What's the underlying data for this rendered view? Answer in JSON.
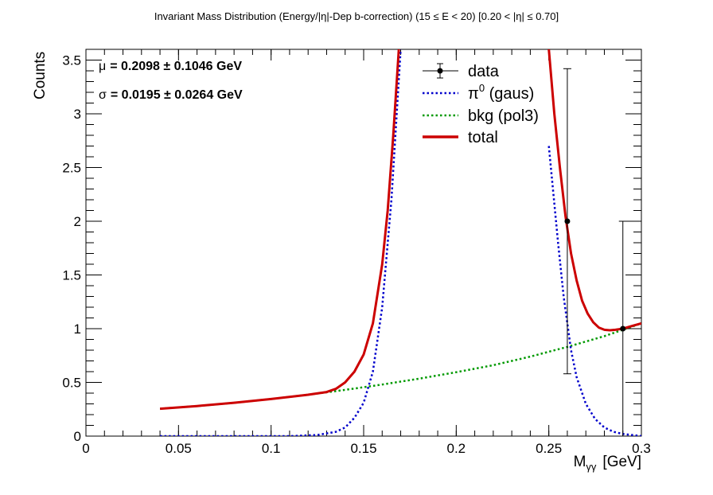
{
  "chart_data": {
    "type": "line",
    "title": "Invariant Mass Distribution (Energy/|η|-Dep b-correction)   (15 ≤ E < 20)   [0.20 < |η| ≤ 0.70]",
    "xlabel": "M",
    "xlabel_sub": "γγ",
    "xlabel_unit": "[GeV]",
    "ylabel": "Counts",
    "xlim": [
      0,
      0.3
    ],
    "ylim": [
      0,
      3.6
    ],
    "x_ticks": [
      0,
      0.05,
      0.1,
      0.15,
      0.2,
      0.25,
      0.3
    ],
    "x_tick_labels": [
      "0",
      "0.05",
      "0.1",
      "0.15",
      "0.2",
      "0.25",
      "0.3"
    ],
    "y_ticks": [
      0,
      0.5,
      1,
      1.5,
      2,
      2.5,
      3,
      3.5
    ],
    "y_tick_labels": [
      "0",
      "0.5",
      "1",
      "1.5",
      "2",
      "2.5",
      "3",
      "3.5"
    ],
    "grid": false,
    "legend_position": "top-right",
    "annotations": {
      "mu_symbol": "μ",
      "mu_text": "= 0.2098  ± 0.1046 GeV",
      "sigma_symbol": "σ",
      "sigma_text": "= 0.0195  ± 0.0264 GeV"
    },
    "legend": {
      "data": "data",
      "pi0_base": "π",
      "pi0_sup": "0",
      "pi0_rest": " (gaus)",
      "bkg": "bkg (pol3)",
      "total": "total"
    },
    "colors": {
      "data": "#000000",
      "pi0": "#0000cc",
      "bkg": "#009900",
      "total": "#cc0000"
    },
    "data_points": [
      {
        "x": 0.26,
        "y": 2,
        "yerr_low": 1.42,
        "yerr_high": 1.42
      },
      {
        "x": 0.29,
        "y": 1,
        "yerr_low": 1,
        "yerr_high": 1
      }
    ],
    "series": [
      {
        "name": "π0 (gaus)",
        "style": "dotted",
        "x": [
          0.04,
          0.08,
          0.11,
          0.125,
          0.135,
          0.14,
          0.145,
          0.15,
          0.155,
          0.16,
          0.165,
          0.17,
          0.175,
          0.25,
          0.255,
          0.258,
          0.262,
          0.265,
          0.27,
          0.275,
          0.28,
          0.285,
          0.29,
          0.3
        ],
        "values": [
          0.0,
          0.0,
          0.0,
          0.01,
          0.04,
          0.08,
          0.17,
          0.31,
          0.6,
          1.2,
          2.2,
          3.6,
          5.2,
          2.7,
          1.8,
          1.3,
          0.8,
          0.55,
          0.3,
          0.16,
          0.08,
          0.04,
          0.02,
          0.0
        ]
      },
      {
        "name": "bkg (pol3)",
        "style": "dotted",
        "x": [
          0.04,
          0.06,
          0.08,
          0.1,
          0.12,
          0.14,
          0.16,
          0.18,
          0.2,
          0.22,
          0.24,
          0.26,
          0.28,
          0.3
        ],
        "values": [
          0.255,
          0.28,
          0.31,
          0.345,
          0.385,
          0.43,
          0.48,
          0.535,
          0.595,
          0.66,
          0.74,
          0.83,
          0.93,
          1.05
        ]
      },
      {
        "name": "total",
        "style": "solid",
        "x": [
          0.04,
          0.06,
          0.08,
          0.1,
          0.12,
          0.13,
          0.135,
          0.14,
          0.145,
          0.15,
          0.155,
          0.16,
          0.163,
          0.166,
          0.169,
          0.172,
          0.175,
          0.25,
          0.253,
          0.256,
          0.259,
          0.262,
          0.265,
          0.268,
          0.271,
          0.274,
          0.277,
          0.28,
          0.283,
          0.286,
          0.29,
          0.295,
          0.3
        ],
        "values": [
          0.255,
          0.28,
          0.31,
          0.345,
          0.385,
          0.41,
          0.44,
          0.5,
          0.6,
          0.76,
          1.05,
          1.6,
          2.1,
          2.8,
          3.6,
          4.5,
          5.5,
          3.6,
          3.0,
          2.5,
          2.05,
          1.7,
          1.45,
          1.26,
          1.14,
          1.06,
          1.01,
          0.99,
          0.985,
          0.99,
          1.0,
          1.025,
          1.05
        ]
      }
    ]
  }
}
